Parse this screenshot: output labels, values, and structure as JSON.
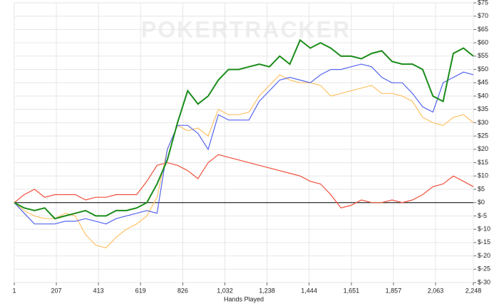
{
  "chart_data": {
    "type": "line",
    "watermark": "POKERTRACKER",
    "x_label": "Hands Played",
    "x": [
      1,
      50,
      100,
      150,
      200,
      250,
      300,
      350,
      400,
      450,
      500,
      550,
      600,
      650,
      700,
      750,
      800,
      850,
      900,
      950,
      1000,
      1050,
      1100,
      1150,
      1200,
      1250,
      1300,
      1350,
      1400,
      1450,
      1500,
      1550,
      1600,
      1650,
      1700,
      1750,
      1800,
      1850,
      1900,
      1950,
      2000,
      2050,
      2100,
      2150,
      2200,
      2248
    ],
    "series": [
      {
        "color": "#f0503c",
        "values": [
          0,
          3,
          5,
          2,
          3,
          3,
          3,
          1,
          2,
          2,
          3,
          3,
          3,
          8,
          14,
          15,
          14,
          12,
          9,
          15,
          18,
          17,
          16,
          15,
          14,
          13,
          12,
          11,
          10,
          8,
          7,
          3,
          -2,
          -1,
          1,
          0,
          0,
          1,
          0,
          1,
          3,
          6,
          7,
          10,
          8,
          6
        ]
      },
      {
        "color": "#ffc266",
        "values": [
          0,
          -3,
          -5,
          -6,
          -6,
          -4,
          -5,
          -12,
          -16,
          -17,
          -13,
          -10,
          -8,
          -5,
          2,
          20,
          29,
          27,
          28,
          25,
          35,
          33,
          33,
          34,
          40,
          44,
          48,
          46,
          45,
          45,
          44,
          40,
          41,
          42,
          43,
          44,
          41,
          41,
          40,
          38,
          32,
          30,
          29,
          32,
          33,
          30
        ]
      },
      {
        "color": "#5566ee",
        "values": [
          0,
          -4,
          -8,
          -8,
          -8,
          -7,
          -7,
          -6,
          -7,
          -8,
          -6,
          -5,
          -4,
          -3,
          -4,
          20,
          29,
          29,
          26,
          20,
          33,
          31,
          31,
          31,
          38,
          42,
          46,
          47,
          46,
          45,
          48,
          50,
          50,
          51,
          52,
          51,
          47,
          45,
          45,
          41,
          36,
          34,
          45,
          47,
          49,
          48
        ]
      },
      {
        "color": "#1a8c1a",
        "values": [
          0,
          -2,
          -3,
          -2,
          -6,
          -5,
          -4,
          -3,
          -5,
          -5,
          -3,
          -3,
          -2,
          0,
          7,
          16,
          30,
          42,
          37,
          40,
          46,
          50,
          50,
          51,
          52,
          51,
          55,
          52,
          61,
          58,
          60,
          58,
          55,
          55,
          54,
          56,
          57,
          53,
          52,
          52,
          50,
          40,
          38,
          56,
          58,
          55
        ]
      }
    ],
    "xlim": [
      1,
      2248
    ],
    "ylim": [
      -30,
      75
    ],
    "xticks": [
      1,
      207,
      413,
      619,
      826,
      {
        "value": 1032,
        "label": "1,032"
      },
      {
        "value": 1238,
        "label": "1,238"
      },
      {
        "value": 1444,
        "label": "1,444"
      },
      {
        "value": 1651,
        "label": "1,651"
      },
      {
        "value": 1857,
        "label": "1,857"
      },
      {
        "value": 2063,
        "label": "2,063"
      },
      {
        "value": 2248,
        "label": "2,248"
      }
    ],
    "yticks": [
      {
        "value": 75,
        "label": "$75"
      },
      {
        "value": 70,
        "label": "$70"
      },
      {
        "value": 65,
        "label": "$65"
      },
      {
        "value": 60,
        "label": "$60"
      },
      {
        "value": 55,
        "label": "$55"
      },
      {
        "value": 50,
        "label": "$50"
      },
      {
        "value": 45,
        "label": "$45"
      },
      {
        "value": 40,
        "label": "$40"
      },
      {
        "value": 35,
        "label": "$35"
      },
      {
        "value": 30,
        "label": "$30"
      },
      {
        "value": 25,
        "label": "$25"
      },
      {
        "value": 20,
        "label": "$20"
      },
      {
        "value": 15,
        "label": "$15"
      },
      {
        "value": 10,
        "label": "$10"
      },
      {
        "value": 5,
        "label": "$5"
      },
      {
        "value": 0,
        "label": "$0"
      },
      {
        "value": -5,
        "label": "$-5"
      },
      {
        "value": -10,
        "label": "$-10"
      },
      {
        "value": -15,
        "label": "$-15"
      },
      {
        "value": -20,
        "label": "$-20"
      },
      {
        "value": -25,
        "label": "$-25"
      },
      {
        "value": -30,
        "label": "$-30"
      }
    ],
    "grid": true
  }
}
